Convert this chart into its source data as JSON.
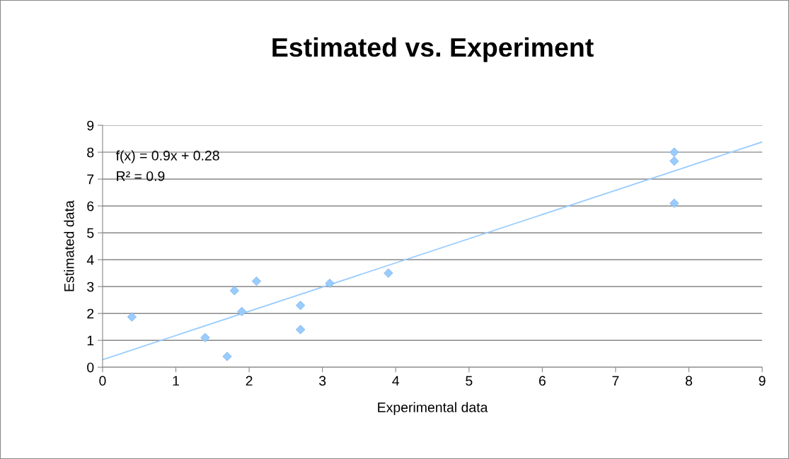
{
  "chart_data": {
    "type": "scatter",
    "title": "Estimated vs. Experiment",
    "xlabel": "Experimental data",
    "ylabel": "Estimated data",
    "annotations": [
      "f(x) = 0.9x + 0.28",
      "R² = 0.9"
    ],
    "series": [
      {
        "color": "#99ccff",
        "marker": "diamond",
        "x": [
          0.4,
          1.4,
          1.7,
          1.8,
          1.9,
          2.1,
          2.7,
          2.7,
          3.1,
          3.9,
          7.8,
          7.8,
          7.8
        ],
        "values": [
          1.87,
          1.1,
          0.4,
          2.85,
          2.07,
          3.2,
          2.3,
          1.4,
          3.12,
          3.5,
          8.0,
          7.67,
          6.1
        ]
      },
      {
        "type": "line",
        "color": "#99ccff",
        "marker": "none",
        "x": [
          0,
          9
        ],
        "values": [
          0.28,
          8.38
        ]
      }
    ],
    "xlim": [
      0,
      9
    ],
    "xticks": [
      0,
      1,
      2,
      3,
      4,
      5,
      6,
      7,
      8,
      9
    ],
    "ylim": [
      0,
      9
    ],
    "yticks": [
      0,
      1,
      2,
      3,
      4,
      5,
      6,
      7,
      8,
      9
    ],
    "grid": "y",
    "legend": false
  }
}
